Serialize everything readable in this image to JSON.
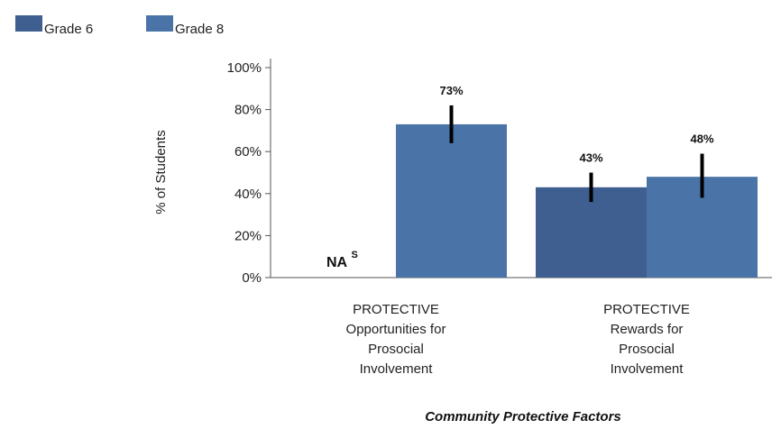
{
  "chart_data": {
    "type": "bar",
    "title": "",
    "xlabel": "Community Protective Factors",
    "ylabel": "% of Students",
    "ylim": [
      0,
      100
    ],
    "yticks": [
      0,
      20,
      40,
      60,
      80,
      100
    ],
    "ytick_labels": [
      "0%",
      "20%",
      "40%",
      "60%",
      "80%",
      "100%"
    ],
    "legend_position": "top-left",
    "categories": [
      [
        "PROTECTIVE",
        "Opportunities for",
        "Prosocial",
        "Involvement"
      ],
      [
        "PROTECTIVE",
        "Rewards for",
        "Prosocial",
        "Involvement"
      ]
    ],
    "series": [
      {
        "name": "Grade 6",
        "color": "#3e5f8f",
        "values": [
          null,
          43
        ],
        "error_low": [
          null,
          36
        ],
        "error_high": [
          null,
          50
        ],
        "labels": [
          null,
          "43%"
        ],
        "na_labels": [
          "NA",
          null
        ],
        "na_superscripts": [
          "S",
          null
        ]
      },
      {
        "name": "Grade 8",
        "color": "#4a74a7",
        "values": [
          73,
          48
        ],
        "error_low": [
          64,
          38
        ],
        "error_high": [
          82,
          59
        ],
        "labels": [
          "73%",
          "48%"
        ]
      }
    ]
  }
}
